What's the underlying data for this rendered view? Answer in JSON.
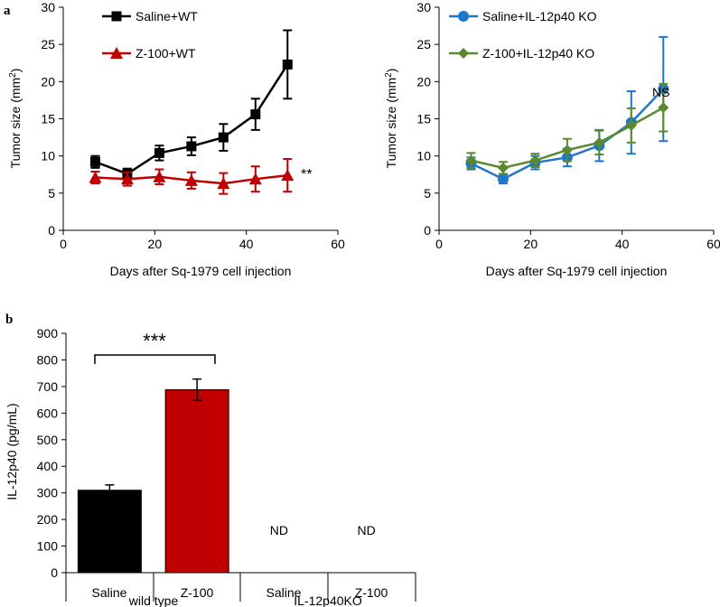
{
  "panel_labels": {
    "a": "a",
    "b": "b"
  },
  "colors": {
    "black": "#000000",
    "red": "#C00000",
    "blue": "#1F77C8",
    "green": "#5B8A2E",
    "axis": "#000000"
  },
  "chart_data": [
    {
      "id": "a-left",
      "type": "line",
      "xlabel": "Days after Sq-1979 cell injection",
      "ylabel": "Tumor size (mm²)",
      "ylabel_main": "Tumor size (mm",
      "ylabel_sup": "2",
      "ylabel_end": ")",
      "xlim": [
        0,
        60
      ],
      "ylim": [
        0,
        30
      ],
      "xticks": [
        0,
        20,
        40,
        60
      ],
      "yticks": [
        0,
        5,
        10,
        15,
        20,
        25,
        30
      ],
      "xtick_labels": [
        "0",
        "20",
        "40",
        "60"
      ],
      "ytick_labels": [
        "0",
        "5",
        "10",
        "15",
        "20",
        "25",
        "30"
      ],
      "annotation": "**",
      "series": [
        {
          "name": "Saline+WT",
          "color": "#000000",
          "marker": "square",
          "x": [
            7,
            14,
            21,
            28,
            35,
            42,
            49
          ],
          "y": [
            9.2,
            7.6,
            10.4,
            11.3,
            12.5,
            15.6,
            22.3
          ],
          "err": [
            0.8,
            0.7,
            1.0,
            1.2,
            1.8,
            2.1,
            4.6
          ]
        },
        {
          "name": "Z-100+WT",
          "color": "#C00000",
          "marker": "triangle",
          "x": [
            7,
            14,
            21,
            28,
            35,
            42,
            49
          ],
          "y": [
            7.1,
            6.9,
            7.2,
            6.7,
            6.3,
            6.9,
            7.4
          ],
          "err": [
            0.8,
            0.9,
            1.0,
            1.1,
            1.4,
            1.7,
            2.2
          ]
        }
      ]
    },
    {
      "id": "a-right",
      "type": "line",
      "xlabel": "Days after Sq-1979 cell injection",
      "ylabel": "Tumor size (mm²)",
      "ylabel_main": "Tumor size (mm",
      "ylabel_sup": "2",
      "ylabel_end": ")",
      "xlim": [
        0,
        60
      ],
      "ylim": [
        0,
        30
      ],
      "xticks": [
        0,
        20,
        40,
        60
      ],
      "yticks": [
        0,
        5,
        10,
        15,
        20,
        25,
        30
      ],
      "xtick_labels": [
        "0",
        "20",
        "40",
        "60"
      ],
      "ytick_labels": [
        "0",
        "5",
        "10",
        "15",
        "20",
        "25",
        "30"
      ],
      "annotation": "NS",
      "series": [
        {
          "name": "Saline+IL-12p40 KO",
          "color": "#1F77C8",
          "marker": "circle",
          "x": [
            7,
            14,
            21,
            28,
            35,
            42,
            49
          ],
          "y": [
            9.0,
            6.9,
            9.1,
            9.8,
            11.4,
            14.5,
            19.0
          ],
          "err": [
            0.8,
            0.6,
            0.9,
            1.2,
            2.1,
            4.2,
            7.0
          ]
        },
        {
          "name": "Z-100+IL-12p40 KO",
          "color": "#5B8A2E",
          "marker": "diamond",
          "x": [
            7,
            14,
            21,
            28,
            35,
            42,
            49
          ],
          "y": [
            9.4,
            8.4,
            9.4,
            10.8,
            11.8,
            14.1,
            16.5
          ],
          "err": [
            1.0,
            0.8,
            0.9,
            1.5,
            1.6,
            2.3,
            3.2
          ]
        }
      ]
    },
    {
      "id": "b",
      "type": "bar",
      "ylabel": "IL-12p40 (pg/mL)",
      "ylim": [
        0,
        900
      ],
      "yticks": [
        0,
        100,
        200,
        300,
        400,
        500,
        600,
        700,
        800,
        900
      ],
      "ytick_labels": [
        "0",
        "100",
        "200",
        "300",
        "400",
        "500",
        "600",
        "700",
        "800",
        "900"
      ],
      "categories": [
        "Saline",
        "Z-100",
        "Saline",
        "Z-100"
      ],
      "groups": [
        "wild type",
        "IL-12p40KO"
      ],
      "values": [
        310,
        688,
        null,
        null
      ],
      "errors": [
        20,
        40,
        null,
        null
      ],
      "bar_colors": [
        "#000000",
        "#C00000",
        "#000000",
        "#000000"
      ],
      "value_labels": [
        "",
        "",
        "ND",
        "ND"
      ],
      "significance": "***"
    }
  ]
}
